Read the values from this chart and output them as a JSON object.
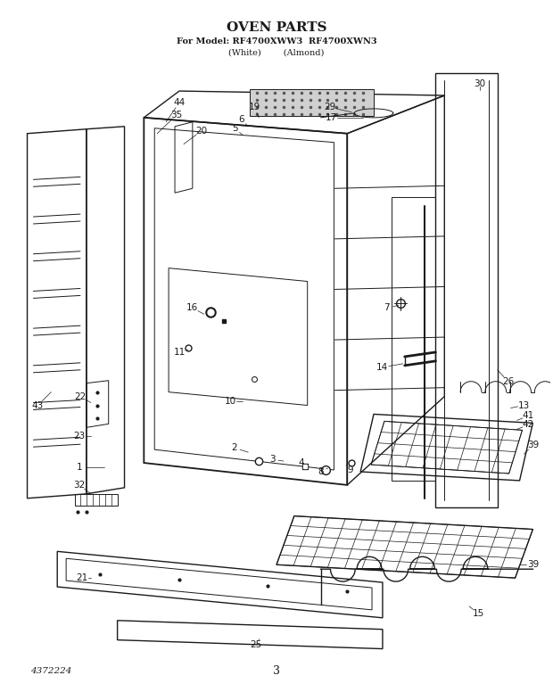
{
  "title": "OVEN PARTS",
  "subtitle1": "For Model: RF4700XWW3 RF4700XWN3",
  "subtitle2": "(White)      (Almond)",
  "page_num": "3",
  "catalog_num": "4372224",
  "bg_color": "#ffffff",
  "line_color": "#1a1a1a"
}
